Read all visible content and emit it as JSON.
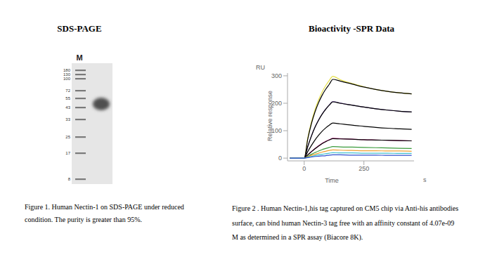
{
  "gel": {
    "title": "SDS-PAGE",
    "lane_label": "M",
    "ladder": [
      180,
      130,
      100,
      72,
      55,
      43,
      33,
      25,
      17,
      8
    ],
    "caption": "Figure 1. Human Nectin-1 on SDS-PAGE under reduced condition. The purity is greater than 95%."
  },
  "chart_data": {
    "type": "line",
    "title": "Bioactivity -SPR Data",
    "y_unit": "RU",
    "y_label": "Relative response",
    "x_label": "Time",
    "x_unit": "s",
    "x": [
      -60,
      -30,
      0,
      15,
      30,
      45,
      60,
      75,
      90,
      105,
      120,
      150,
      200,
      250,
      300,
      350,
      400,
      450
    ],
    "xlim": [
      -70,
      460
    ],
    "xticks": [
      0,
      250
    ],
    "ylim": [
      -10,
      310
    ],
    "yticks": [
      0,
      100,
      200,
      300
    ],
    "series": [
      {
        "color": "#e6e04a",
        "values": [
          0,
          0,
          0,
          74,
          131,
          176,
          212,
          241,
          264,
          283,
          298,
          286,
          272,
          260,
          250,
          243,
          238,
          234
        ]
      },
      {
        "color": "#000000",
        "values": [
          0,
          0,
          0,
          70,
          125,
          168,
          202,
          229,
          251,
          269,
          287,
          281,
          270,
          259,
          250,
          243,
          238,
          234
        ]
      },
      {
        "color": "#7b5ea8",
        "values": [
          0,
          0,
          0,
          43,
          81,
          113,
          139,
          161,
          179,
          194,
          206,
          201,
          193,
          186,
          180,
          175,
          171,
          168
        ]
      },
      {
        "color": "#000000",
        "values": [
          0,
          0,
          0,
          42,
          80,
          112,
          138,
          160,
          178,
          193,
          205,
          200,
          193,
          186,
          180,
          175,
          171,
          168
        ]
      },
      {
        "color": "#000000",
        "values": [
          0,
          0,
          0,
          24,
          46,
          66,
          83,
          98,
          110,
          120,
          128,
          125,
          120,
          116,
          112,
          109,
          107,
          105
        ]
      },
      {
        "color": "#d6409f",
        "values": [
          0,
          0,
          0,
          12,
          24,
          35,
          45,
          54,
          61,
          67,
          72,
          71,
          69,
          67,
          66,
          65,
          64,
          63
        ]
      },
      {
        "color": "#000000",
        "values": [
          0,
          0,
          0,
          12,
          23,
          34,
          44,
          53,
          60,
          66,
          71,
          70,
          69,
          67,
          66,
          65,
          64,
          63
        ]
      },
      {
        "color": "#3a9a3a",
        "values": [
          0,
          0,
          0,
          7,
          14,
          20,
          26,
          31,
          35,
          39,
          42,
          41,
          40,
          39,
          38,
          37,
          36,
          35
        ]
      },
      {
        "color": "#f0a030",
        "values": [
          0,
          0,
          0,
          5,
          10,
          14,
          18,
          22,
          25,
          28,
          30,
          29,
          28,
          27,
          27,
          26,
          26,
          25
        ]
      },
      {
        "color": "#40c0d0",
        "values": [
          0,
          0,
          0,
          3,
          6,
          9,
          12,
          14,
          16,
          18,
          20,
          19,
          19,
          18,
          18,
          18,
          17,
          17
        ]
      },
      {
        "color": "#3050d0",
        "values": [
          0,
          0,
          0,
          2,
          4,
          6,
          7,
          8,
          9,
          11,
          12,
          12,
          11,
          11,
          11,
          10,
          10,
          10
        ]
      }
    ],
    "caption": "Figure 2 . Human Nectin-1,his tag captured on CM5 chip via Anti-his antibodies surface, can bind human Nectin-3 tag free with an affinity constant of 4.07e-09 M as determined in a SPR assay (Biacore 8K)."
  }
}
